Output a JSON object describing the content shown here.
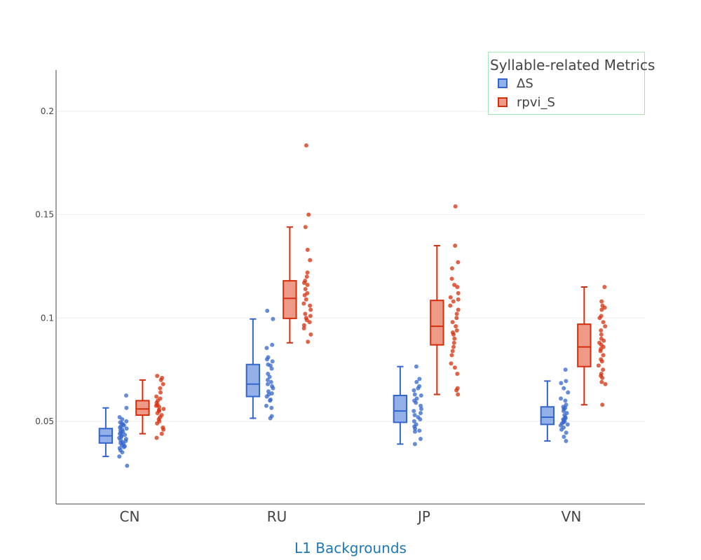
{
  "chart_data": {
    "type": "box",
    "xlabel": "L1 Backgrounds",
    "ylabel": "",
    "ylim": [
      0.01,
      0.22
    ],
    "yticks": [
      0.05,
      0.1,
      0.15,
      0.2
    ],
    "ytick_labels": [
      "0.05",
      "0.1",
      "0.15",
      "0.2"
    ],
    "grid": true,
    "categories": [
      "CN",
      "RU",
      "JP",
      "VN"
    ],
    "legend": {
      "title": "Syllable-related Metrics",
      "placement": "top-right"
    },
    "series": [
      {
        "name": "ΔS",
        "color": "#3366cc",
        "fill": "#94b0e8",
        "boxes": [
          {
            "category": "CN",
            "min": 0.033,
            "q1": 0.0395,
            "median": 0.043,
            "q3": 0.0465,
            "max": 0.0565,
            "points": [
              0.0625,
              0.0565,
              0.052,
              0.051,
              0.05,
              0.0495,
              0.049,
              0.0485,
              0.048,
              0.0475,
              0.047,
              0.0465,
              0.046,
              0.0455,
              0.045,
              0.0445,
              0.044,
              0.0435,
              0.043,
              0.0425,
              0.042,
              0.0415,
              0.041,
              0.0405,
              0.04,
              0.0395,
              0.039,
              0.0385,
              0.038,
              0.0375,
              0.037,
              0.036,
              0.035,
              0.033,
              0.0285
            ]
          },
          {
            "category": "RU",
            "min": 0.0515,
            "q1": 0.062,
            "median": 0.068,
            "q3": 0.0775,
            "max": 0.0995,
            "points": [
              0.1035,
              0.0995,
              0.087,
              0.0855,
              0.081,
              0.08,
              0.079,
              0.0775,
              0.077,
              0.0755,
              0.073,
              0.0715,
              0.07,
              0.069,
              0.068,
              0.067,
              0.066,
              0.0645,
              0.0635,
              0.063,
              0.062,
              0.0605,
              0.06,
              0.0575,
              0.0565,
              0.0525,
              0.0515
            ]
          },
          {
            "category": "JP",
            "min": 0.039,
            "q1": 0.0495,
            "median": 0.055,
            "q3": 0.0625,
            "max": 0.0765,
            "points": [
              0.0765,
              0.0705,
              0.069,
              0.067,
              0.066,
              0.065,
              0.063,
              0.0625,
              0.061,
              0.06,
              0.059,
              0.0575,
              0.056,
              0.055,
              0.054,
              0.053,
              0.052,
              0.051,
              0.05,
              0.0485,
              0.0475,
              0.0465,
              0.0455,
              0.045,
              0.0415,
              0.039
            ]
          },
          {
            "category": "VN",
            "min": 0.0405,
            "q1": 0.0485,
            "median": 0.052,
            "q3": 0.057,
            "max": 0.0695,
            "points": [
              0.075,
              0.0695,
              0.0685,
              0.066,
              0.064,
              0.061,
              0.06,
              0.058,
              0.057,
              0.0565,
              0.056,
              0.055,
              0.054,
              0.053,
              0.052,
              0.0515,
              0.051,
              0.0505,
              0.05,
              0.0495,
              0.049,
              0.0485,
              0.048,
              0.047,
              0.046,
              0.0445,
              0.0425,
              0.0405
            ]
          }
        ]
      },
      {
        "name": "rpvi_S",
        "color": "#d62d0a",
        "fill": "#ee9a88",
        "boxes": [
          {
            "category": "CN",
            "min": 0.044,
            "q1": 0.053,
            "median": 0.056,
            "q3": 0.06,
            "max": 0.07,
            "points": [
              0.072,
              0.071,
              0.07,
              0.068,
              0.066,
              0.064,
              0.062,
              0.061,
              0.06,
              0.059,
              0.058,
              0.0575,
              0.057,
              0.056,
              0.0555,
              0.055,
              0.054,
              0.053,
              0.052,
              0.051,
              0.05,
              0.049,
              0.047,
              0.046,
              0.044,
              0.042
            ]
          },
          {
            "category": "RU",
            "min": 0.088,
            "q1": 0.0998,
            "median": 0.1095,
            "q3": 0.118,
            "max": 0.144,
            "points": [
              0.1835,
              0.15,
              0.144,
              0.133,
              0.128,
              0.122,
              0.12,
              0.118,
              0.117,
              0.116,
              0.114,
              0.112,
              0.111,
              0.109,
              0.107,
              0.106,
              0.104,
              0.102,
              0.101,
              0.1,
              0.099,
              0.098,
              0.0965,
              0.095,
              0.092,
              0.0885
            ]
          },
          {
            "category": "JP",
            "min": 0.063,
            "q1": 0.087,
            "median": 0.096,
            "q3": 0.1085,
            "max": 0.135,
            "points": [
              0.154,
              0.135,
              0.127,
              0.124,
              0.119,
              0.116,
              0.115,
              0.112,
              0.11,
              0.109,
              0.108,
              0.106,
              0.104,
              0.102,
              0.1,
              0.098,
              0.096,
              0.094,
              0.093,
              0.092,
              0.09,
              0.088,
              0.086,
              0.084,
              0.082,
              0.078,
              0.076,
              0.073,
              0.066,
              0.065,
              0.063
            ]
          },
          {
            "category": "VN",
            "min": 0.058,
            "q1": 0.0765,
            "median": 0.086,
            "q3": 0.097,
            "max": 0.115,
            "points": [
              0.115,
              0.108,
              0.106,
              0.105,
              0.104,
              0.101,
              0.1,
              0.098,
              0.096,
              0.094,
              0.092,
              0.09,
              0.089,
              0.088,
              0.087,
              0.086,
              0.085,
              0.084,
              0.082,
              0.08,
              0.079,
              0.077,
              0.075,
              0.073,
              0.072,
              0.071,
              0.069,
              0.068,
              0.058
            ]
          }
        ]
      }
    ]
  }
}
